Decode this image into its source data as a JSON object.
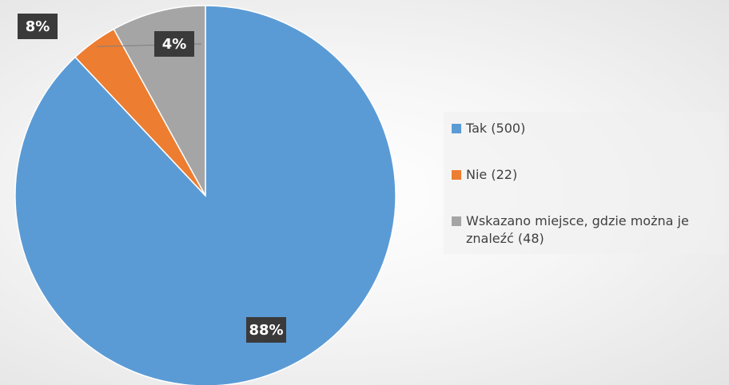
{
  "chart_data": {
    "type": "pie",
    "categories": [
      "Tak (500)",
      "Nie (22)",
      "Wskazano miejsce, gdzie można je znaleźć (48)"
    ],
    "values": [
      88,
      4,
      8
    ],
    "value_labels": [
      "88%",
      "4%",
      "8%"
    ],
    "colors": [
      "#5b9bd5",
      "#ed7d31",
      "#a5a5a5"
    ],
    "legend": "right"
  }
}
